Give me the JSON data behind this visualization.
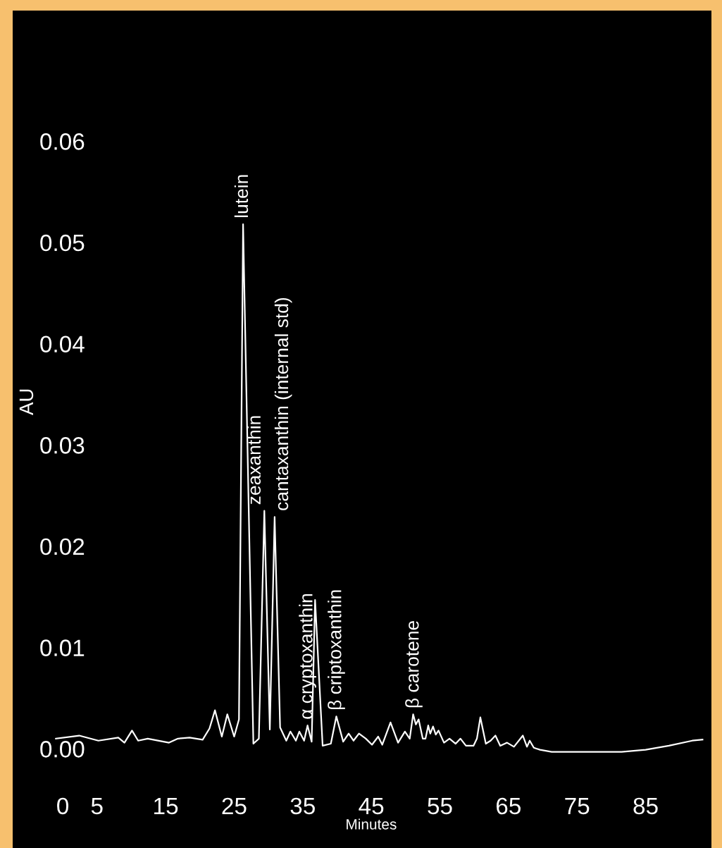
{
  "chart_data": {
    "type": "line",
    "xlabel": "Minutes",
    "ylabel": "AU",
    "x": [
      -1.0,
      2.4,
      5.2,
      8.1,
      9.0,
      10.1,
      11.0,
      12.4,
      15.5,
      16.8,
      18.5,
      20.4,
      21.4,
      22.2,
      23.2,
      24.0,
      25.0,
      25.7,
      26.3,
      27.8,
      28.6,
      29.4,
      30.2,
      30.9,
      31.7,
      32.6,
      33.2,
      34.0,
      34.5,
      35.2,
      35.7,
      36.3,
      36.8,
      37.9,
      39.1,
      39.9,
      40.9,
      41.7,
      42.4,
      43.2,
      44.2,
      45.1,
      46.0,
      46.6,
      47.8,
      48.9,
      49.9,
      50.6,
      51.1,
      51.5,
      51.9,
      52.5,
      52.9,
      53.3,
      53.6,
      54.0,
      54.4,
      54.8,
      55.6,
      56.4,
      57.3,
      58.0,
      58.8,
      59.9,
      60.4,
      60.9,
      61.7,
      62.4,
      63.1,
      63.8,
      64.8,
      65.8,
      67.1,
      67.7,
      68.1,
      68.7,
      69.6,
      71.3,
      76.4,
      81.5,
      85.0,
      88.4,
      91.8,
      93.3
    ],
    "series": [
      {
        "color": "#ffffff",
        "values": [
          0.001,
          0.0013,
          0.0008,
          0.0011,
          0.0006,
          0.0018,
          0.0008,
          0.001,
          0.0006,
          0.001,
          0.0011,
          0.0009,
          0.002,
          0.0038,
          0.0012,
          0.0034,
          0.0012,
          0.0029,
          0.0518,
          0.0005,
          0.001,
          0.0235,
          0.0019,
          0.0229,
          0.0021,
          0.0008,
          0.0017,
          0.0008,
          0.0017,
          0.0008,
          0.0023,
          0.0007,
          0.0147,
          0.0003,
          0.0005,
          0.0032,
          0.0007,
          0.0015,
          0.0008,
          0.0015,
          0.001,
          0.0004,
          0.0012,
          0.0004,
          0.0026,
          0.0006,
          0.0017,
          0.001,
          0.0034,
          0.0024,
          0.0029,
          0.001,
          0.001,
          0.0023,
          0.0015,
          0.0022,
          0.0014,
          0.0018,
          0.0006,
          0.001,
          0.0005,
          0.001,
          0.0003,
          0.0003,
          0.001,
          0.0031,
          0.0005,
          0.0008,
          0.0013,
          0.0003,
          0.0006,
          0.0002,
          0.0013,
          0.0002,
          0.0008,
          0.0001,
          -0.0001,
          -0.0003,
          -0.0003,
          -0.0003,
          -0.0001,
          0.0003,
          0.0008,
          0.0009
        ]
      }
    ],
    "xlim": [
      -7.3,
      94.6
    ],
    "ylim": [
      -0.0098,
      0.0729
    ],
    "xticks": [
      0,
      5,
      15,
      25,
      35,
      45,
      55,
      65,
      75,
      85
    ],
    "yticks": [
      {
        "value": 0,
        "label": "0.00"
      },
      0.01,
      0.02,
      0.03,
      0.04,
      0.05,
      0.06
    ],
    "grid": false,
    "legend": false,
    "marker": "none",
    "line_style": "solid",
    "annotations": [
      {
        "text": "lutein",
        "x": 26.3,
        "y": 0.0518
      },
      {
        "text": "zeaxanthin",
        "x": 29.4,
        "y": 0.0235
      },
      {
        "text": "cantaxanthin (internal std)",
        "x": 30.9,
        "y": 0.0229
      },
      {
        "text": "α cryptoxanthin",
        "x": 35.7,
        "y": 0.0023
      },
      {
        "text": "β criptoxanthin",
        "x": 39.9,
        "y": 0.0032
      },
      {
        "text": "β carotene",
        "x": 51.2,
        "y": 0.0034
      }
    ]
  }
}
